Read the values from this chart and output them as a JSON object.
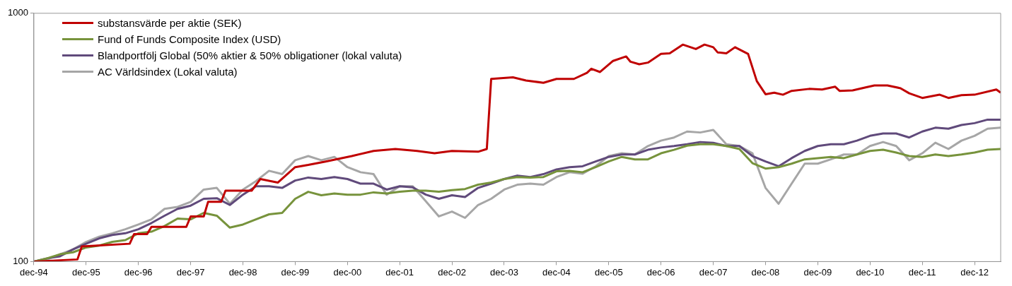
{
  "chart_data": {
    "type": "line",
    "log": "y",
    "ylim": [
      100,
      1000
    ],
    "yticks": [
      100,
      1000
    ],
    "xlim": [
      "1994-12",
      "2013-06"
    ],
    "xticks": [
      {
        "value": "1994-12",
        "label": "dec-94"
      },
      {
        "value": "1995-12",
        "label": "dec-95"
      },
      {
        "value": "1996-12",
        "label": "dec-96"
      },
      {
        "value": "1997-12",
        "label": "dec-97"
      },
      {
        "value": "1998-12",
        "label": "dec-98"
      },
      {
        "value": "1999-12",
        "label": "dec-99"
      },
      {
        "value": "2000-12",
        "label": "dec-00"
      },
      {
        "value": "2001-12",
        "label": "dec-01"
      },
      {
        "value": "2002-12",
        "label": "dec-02"
      },
      {
        "value": "2003-12",
        "label": "dec-03"
      },
      {
        "value": "2004-12",
        "label": "dec-04"
      },
      {
        "value": "2005-12",
        "label": "dec-05"
      },
      {
        "value": "2006-12",
        "label": "dec-06"
      },
      {
        "value": "2007-12",
        "label": "dec-07"
      },
      {
        "value": "2008-12",
        "label": "dec-08"
      },
      {
        "value": "2009-12",
        "label": "dec-09"
      },
      {
        "value": "2010-12",
        "label": "dec-10"
      },
      {
        "value": "2011-12",
        "label": "dec-11"
      },
      {
        "value": "2012-12",
        "label": "dec-12"
      }
    ],
    "x": [
      "1994-12",
      "1995-03",
      "1995-06",
      "1995-09",
      "1995-12",
      "1996-03",
      "1996-06",
      "1996-09",
      "1996-12",
      "1997-03",
      "1997-06",
      "1997-09",
      "1997-12",
      "1998-03",
      "1998-06",
      "1998-09",
      "1998-12",
      "1999-03",
      "1999-06",
      "1999-09",
      "1999-12",
      "2000-03",
      "2000-06",
      "2000-09",
      "2000-12",
      "2001-03",
      "2001-06",
      "2001-09",
      "2001-12",
      "2002-03",
      "2002-06",
      "2002-09",
      "2002-12",
      "2003-03",
      "2003-06",
      "2003-09",
      "2003-12",
      "2004-03",
      "2004-06",
      "2004-09",
      "2004-12",
      "2005-03",
      "2005-06",
      "2005-09",
      "2005-12",
      "2006-03",
      "2006-06",
      "2006-09",
      "2006-12",
      "2007-03",
      "2007-06",
      "2007-09",
      "2007-12",
      "2008-03",
      "2008-06",
      "2008-09",
      "2008-12",
      "2009-03",
      "2009-06",
      "2009-09",
      "2009-12",
      "2010-03",
      "2010-06",
      "2010-09",
      "2010-12",
      "2011-03",
      "2011-06",
      "2011-09",
      "2011-12",
      "2012-03",
      "2012-06",
      "2012-09",
      "2012-12",
      "2013-03",
      "2013-06"
    ],
    "legend": "top left",
    "line_style": "solid",
    "marker": "none",
    "grid": false,
    "series": [
      {
        "name": "substansvärde per aktie (SEK)",
        "color": "#c00000",
        "x": [
          "1994-12",
          "1995-10",
          "1995-11",
          "1996-10",
          "1996-11",
          "1997-02",
          "1997-03",
          "1997-11",
          "1997-12",
          "1998-03",
          "1998-04",
          "1998-07",
          "1998-08",
          "1999-02",
          "1999-04",
          "1999-08",
          "1999-12",
          "2000-03",
          "2000-07",
          "2001-01",
          "2001-06",
          "2001-11",
          "2002-04",
          "2002-08",
          "2002-12",
          "2003-06",
          "2003-08",
          "2003-09",
          "2004-02",
          "2004-05",
          "2004-09",
          "2004-12",
          "2005-04",
          "2005-07",
          "2005-08",
          "2005-10",
          "2006-01",
          "2006-04",
          "2006-05",
          "2006-07",
          "2006-09",
          "2006-12",
          "2007-02",
          "2007-05",
          "2007-08",
          "2007-10",
          "2007-12",
          "2008-01",
          "2008-03",
          "2008-05",
          "2008-08",
          "2008-10",
          "2008-12",
          "2009-02",
          "2009-04",
          "2009-06",
          "2009-10",
          "2010-01",
          "2010-04",
          "2010-05",
          "2010-08",
          "2010-11",
          "2011-01",
          "2011-04",
          "2011-07",
          "2011-09",
          "2011-12",
          "2012-04",
          "2012-06",
          "2012-09",
          "2012-12",
          "2013-05",
          "2013-06"
        ],
        "values": [
          100,
          102,
          115,
          118,
          129,
          129,
          138,
          138,
          152,
          152,
          174,
          174,
          193,
          193,
          215,
          208,
          240,
          245,
          253,
          266,
          279,
          284,
          279,
          273,
          279,
          277,
          284,
          544,
          552,
          536,
          525,
          544,
          544,
          576,
          598,
          580,
          643,
          670,
          638,
          623,
          633,
          686,
          690,
          748,
          718,
          748,
          730,
          696,
          690,
          730,
          686,
          533,
          472,
          479,
          470,
          487,
          496,
          493,
          506,
          487,
          489,
          503,
          512,
          512,
          499,
          476,
          456,
          470,
          456,
          468,
          470,
          493,
          479
        ]
      },
      {
        "name": "Fund of Funds Composite Index (USD)",
        "color": "#77933c",
        "values": [
          100,
          103,
          107,
          109,
          114,
          116,
          120,
          122,
          130,
          132,
          139,
          149,
          148,
          157,
          153,
          137,
          141,
          148,
          155,
          157,
          179,
          191,
          185,
          188,
          186,
          186,
          190,
          188,
          191,
          193,
          193,
          191,
          194,
          196,
          204,
          208,
          215,
          219,
          218,
          219,
          231,
          232,
          229,
          240,
          253,
          264,
          258,
          258,
          273,
          282,
          293,
          297,
          297,
          292,
          284,
          249,
          237,
          240,
          248,
          258,
          261,
          264,
          261,
          270,
          279,
          282,
          275,
          266,
          264,
          270,
          266,
          270,
          275,
          282,
          284
        ]
      },
      {
        "name": "Blandportfölj Global (50% aktier & 50% obligationer (lokal valuta)",
        "color": "#604a7b",
        "values": [
          100,
          103,
          105,
          112,
          118,
          124,
          128,
          130,
          135,
          143,
          153,
          163,
          168,
          179,
          180,
          169,
          186,
          201,
          201,
          198,
          212,
          218,
          215,
          219,
          215,
          206,
          206,
          195,
          201,
          199,
          186,
          179,
          185,
          182,
          198,
          206,
          215,
          222,
          219,
          225,
          235,
          240,
          242,
          253,
          264,
          270,
          270,
          282,
          288,
          292,
          297,
          303,
          301,
          292,
          292,
          266,
          253,
          242,
          261,
          279,
          292,
          297,
          297,
          307,
          321,
          328,
          328,
          316,
          334,
          346,
          343,
          355,
          361,
          373,
          373
        ]
      },
      {
        "name": "AC Världsindex (Lokal valuta)",
        "color": "#a6a6a6",
        "values": [
          100,
          102,
          107,
          112,
          120,
          126,
          130,
          135,
          141,
          148,
          163,
          166,
          174,
          195,
          198,
          171,
          195,
          211,
          232,
          225,
          256,
          266,
          256,
          264,
          240,
          229,
          225,
          186,
          201,
          201,
          175,
          152,
          159,
          150,
          169,
          179,
          195,
          204,
          206,
          204,
          219,
          229,
          226,
          242,
          266,
          273,
          270,
          292,
          307,
          316,
          334,
          331,
          339,
          297,
          292,
          273,
          198,
          171,
          206,
          248,
          248,
          258,
          270,
          270,
          292,
          303,
          292,
          256,
          273,
          301,
          284,
          307,
          321,
          343,
          346
        ]
      }
    ]
  }
}
